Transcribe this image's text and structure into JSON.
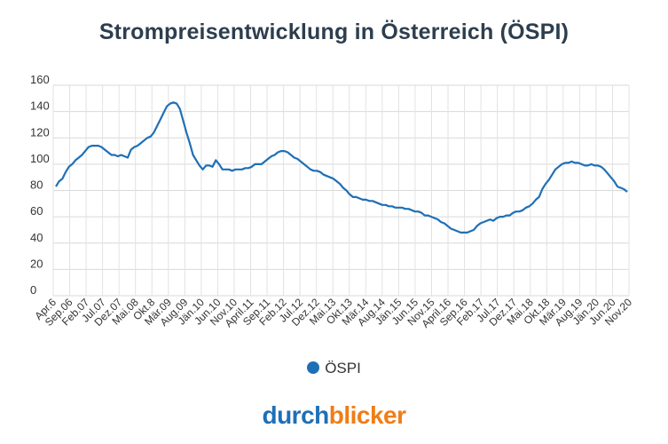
{
  "title": "Strompreisentwicklung in Österreich (ÖSPI)",
  "logo": {
    "part1": "durch",
    "part2": "blicker",
    "color1": "#1f6fb6",
    "color2": "#f07d17"
  },
  "legend": {
    "label": "ÖSPI"
  },
  "chart_data": {
    "type": "line",
    "title": "Strompreisentwicklung in Österreich (ÖSPI)",
    "xlabel": "",
    "ylabel": "",
    "ylim": [
      0,
      160
    ],
    "yticks": [
      0,
      20,
      40,
      60,
      80,
      100,
      120,
      140,
      160
    ],
    "grid": true,
    "legend_position": "bottom",
    "x_tick_labels": [
      "Apr.6",
      "Sep.06",
      "Feb.07",
      "Jul.07",
      "Dez.07",
      "Mai.08",
      "Okt.8",
      "Mär.09",
      "Aug.09",
      "Jän.10",
      "Jun.10",
      "Nov.10",
      "April.11",
      "Sep.11",
      "Feb.12",
      "Jul.12",
      "Dez.12",
      "Mai.13",
      "Okt.13",
      "Mär.14",
      "Aug.14",
      "Jän.15",
      "Jun.15",
      "Nov.15",
      "April.16",
      "Sep.16",
      "Feb.17",
      "Jul.17",
      "Dez.17",
      "Mai.18",
      "Okt.18",
      "Mär.19",
      "Aug.19",
      "Jän.20",
      "Jun.20",
      "Nov.20"
    ],
    "series": [
      {
        "name": "ÖSPI",
        "color": "#1f6fb6",
        "values": [
          83,
          87,
          89,
          94,
          98,
          100,
          103,
          105,
          107,
          110,
          113,
          114,
          114,
          114,
          113,
          111,
          109,
          107,
          107,
          106,
          107,
          106,
          105,
          111,
          113,
          114,
          116,
          118,
          120,
          121,
          124,
          129,
          134,
          139,
          144,
          146,
          147,
          146,
          142,
          133,
          124,
          116,
          107,
          103,
          99,
          96,
          99,
          99,
          98,
          103,
          100,
          96,
          96,
          96,
          95,
          96,
          96,
          96,
          97,
          97,
          98,
          100,
          100,
          100,
          102,
          104,
          106,
          107,
          109,
          110,
          110,
          109,
          107,
          105,
          104,
          102,
          100,
          98,
          96,
          95,
          95,
          94,
          92,
          91,
          90,
          89,
          87,
          85,
          82,
          80,
          77,
          75,
          75,
          74,
          73,
          73,
          72,
          72,
          71,
          70,
          69,
          69,
          68,
          68,
          67,
          67,
          67,
          66,
          66,
          65,
          64,
          64,
          63,
          61,
          61,
          60,
          59,
          58,
          56,
          55,
          53,
          51,
          50,
          49,
          48,
          48,
          48,
          49,
          50,
          53,
          55,
          56,
          57,
          58,
          57,
          59,
          60,
          60,
          61,
          61,
          63,
          64,
          64,
          65,
          67,
          68,
          70,
          73,
          75,
          81,
          85,
          88,
          92,
          96,
          98,
          100,
          101,
          101,
          102,
          101,
          101,
          100,
          99,
          99,
          100,
          99,
          99,
          98,
          96,
          93,
          90,
          87,
          83,
          82,
          81,
          79
        ]
      }
    ]
  }
}
